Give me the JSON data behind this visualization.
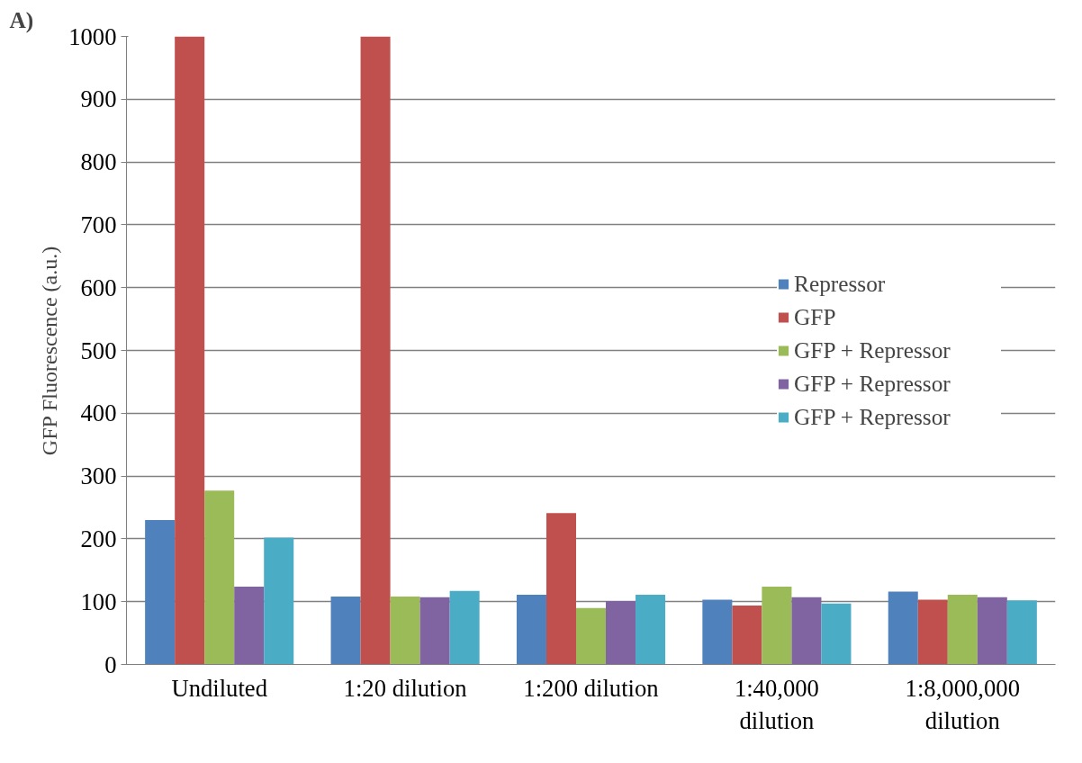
{
  "chart_data": {
    "type": "bar",
    "ylabel": "GFP Fluorescence (a.u.)",
    "annotations": [
      "A)"
    ],
    "categories": [
      "Undiluted",
      "1:20 dilution",
      "1:200 dilution",
      "1:40,000\ndilution",
      "1:8,000,000\ndilution"
    ],
    "series": [
      {
        "name": "Repressor",
        "color": "#4f81bd",
        "values": [
          230,
          108,
          111,
          103,
          116
        ]
      },
      {
        "name": "GFP",
        "color": "#c0504d",
        "values": [
          1000,
          1000,
          241,
          94,
          103
        ]
      },
      {
        "name": "GFP + Repressor",
        "color": "#9bbb59",
        "values": [
          277,
          108,
          90,
          124,
          111
        ]
      },
      {
        "name": "GFP + Repressor",
        "color": "#8064a2",
        "values": [
          124,
          107,
          101,
          107,
          107
        ]
      },
      {
        "name": "GFP + Repressor",
        "color": "#4bacc6",
        "values": [
          202,
          117,
          111,
          97,
          102
        ]
      }
    ],
    "ylim": [
      0,
      1000
    ],
    "yticks": [
      0,
      100,
      200,
      300,
      400,
      500,
      600,
      700,
      800,
      900,
      1000
    ],
    "grid": "y",
    "legend": "right"
  }
}
